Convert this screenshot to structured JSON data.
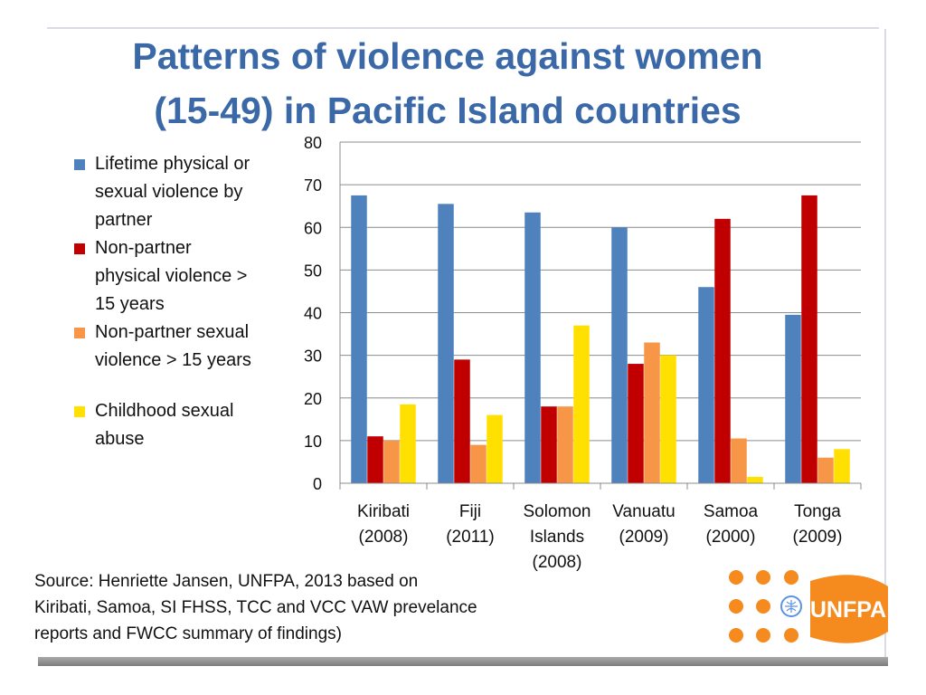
{
  "slide": {
    "title_line1": "Patterns of violence against women",
    "title_line2": "(15-49) in Pacific Island countries",
    "source_line1": "Source: Henriette Jansen, UNFPA, 2013 based on",
    "source_line2": "Kiribati, Samoa, SI FHSS, TCC and VCC VAW prevelance",
    "source_line3": "reports and FWCC summary of findings)",
    "logo_text": "UNFPA"
  },
  "legend": [
    {
      "lines": [
        "Lifetime physical or",
        "sexual violence by",
        "partner"
      ],
      "color": "#4F81BD"
    },
    {
      "lines": [
        "Non-partner",
        "physical violence >",
        "15 years"
      ],
      "color": "#C00000"
    },
    {
      "lines": [
        "Non-partner sexual",
        "violence > 15 years"
      ],
      "color": "#F79646"
    },
    {
      "lines": [
        "Childhood sexual",
        "abuse"
      ],
      "color": "#FFE000"
    }
  ],
  "chart_data": {
    "type": "bar",
    "title": "Patterns of violence against women (15-49) in Pacific Island countries",
    "xlabel": "",
    "ylabel": "",
    "ylim": [
      0,
      80
    ],
    "yticks": [
      0,
      10,
      20,
      30,
      40,
      50,
      60,
      70,
      80
    ],
    "grid": true,
    "legend_position": "left",
    "categories": [
      [
        "Kiribati",
        "(2008)"
      ],
      [
        "Fiji",
        "(2011)"
      ],
      [
        "Solomon",
        "Islands",
        "(2008)"
      ],
      [
        "Vanuatu",
        "(2009)"
      ],
      [
        "Samoa",
        "(2000)"
      ],
      [
        "Tonga",
        "(2009)"
      ]
    ],
    "series": [
      {
        "name": "Lifetime physical or sexual violence by partner",
        "color": "#4F81BD",
        "values": [
          67.5,
          65.5,
          63.5,
          60,
          46,
          39.5
        ]
      },
      {
        "name": "Non-partner physical violence > 15 years",
        "color": "#C00000",
        "values": [
          11,
          29,
          18,
          28,
          62,
          67.5
        ]
      },
      {
        "name": "Non-partner sexual violence > 15 years",
        "color": "#F79646",
        "values": [
          10,
          9,
          18,
          33,
          10.5,
          6
        ]
      },
      {
        "name": "Childhood sexual abuse",
        "color": "#FFE000",
        "values": [
          18.5,
          16,
          37,
          30,
          1.5,
          8
        ]
      }
    ]
  }
}
